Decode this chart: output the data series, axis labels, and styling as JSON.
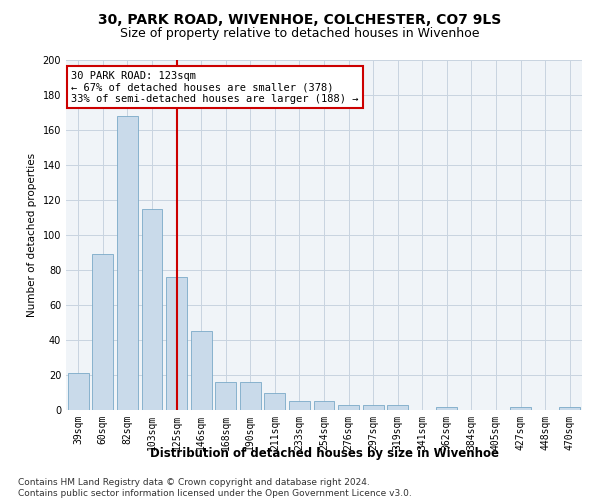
{
  "title1": "30, PARK ROAD, WIVENHOE, COLCHESTER, CO7 9LS",
  "title2": "Size of property relative to detached houses in Wivenhoe",
  "xlabel": "Distribution of detached houses by size in Wivenhoe",
  "ylabel": "Number of detached properties",
  "categories": [
    "39sqm",
    "60sqm",
    "82sqm",
    "103sqm",
    "125sqm",
    "146sqm",
    "168sqm",
    "190sqm",
    "211sqm",
    "233sqm",
    "254sqm",
    "276sqm",
    "297sqm",
    "319sqm",
    "341sqm",
    "362sqm",
    "384sqm",
    "405sqm",
    "427sqm",
    "448sqm",
    "470sqm"
  ],
  "values": [
    21,
    89,
    168,
    115,
    76,
    45,
    16,
    16,
    10,
    5,
    5,
    3,
    3,
    3,
    0,
    2,
    0,
    0,
    2,
    0,
    2
  ],
  "bar_color": "#c9daea",
  "bar_edge_color": "#7aaac8",
  "vline_index": 4,
  "vline_color": "#cc0000",
  "annotation_line1": "30 PARK ROAD: 123sqm",
  "annotation_line2": "← 67% of detached houses are smaller (378)",
  "annotation_line3": "33% of semi-detached houses are larger (188) →",
  "annotation_box_color": "white",
  "annotation_box_edge": "#cc0000",
  "ylim": [
    0,
    200
  ],
  "yticks": [
    0,
    20,
    40,
    60,
    80,
    100,
    120,
    140,
    160,
    180,
    200
  ],
  "grid_color": "#c8d4e0",
  "footnote": "Contains HM Land Registry data © Crown copyright and database right 2024.\nContains public sector information licensed under the Open Government Licence v3.0.",
  "title1_fontsize": 10,
  "title2_fontsize": 9,
  "xlabel_fontsize": 8.5,
  "ylabel_fontsize": 7.5,
  "tick_fontsize": 7,
  "annot_fontsize": 7.5,
  "footnote_fontsize": 6.5,
  "background_color": "#f0f4f8"
}
